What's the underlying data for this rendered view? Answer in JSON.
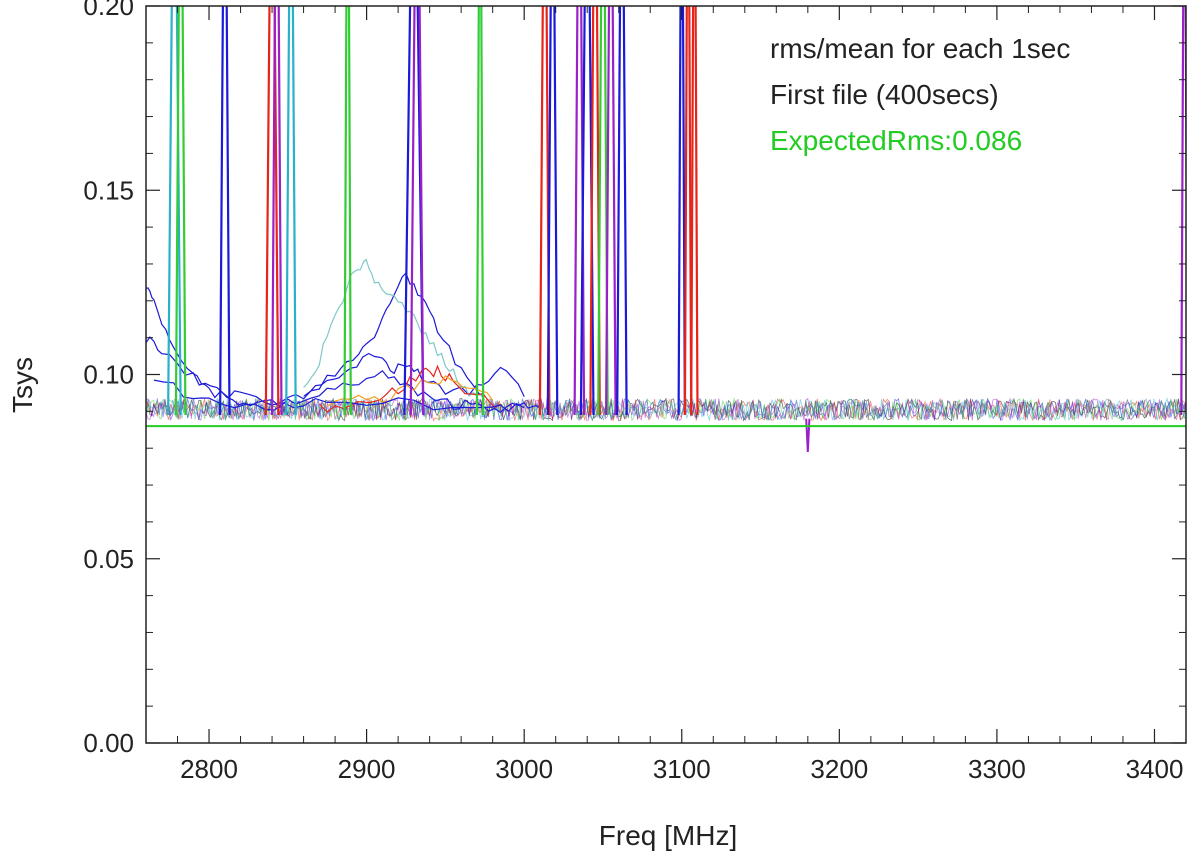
{
  "chart_data": {
    "type": "line",
    "xlabel": "Freq [MHz]",
    "ylabel": "Tsys",
    "xlim": [
      2760,
      3420
    ],
    "ylim": [
      0.0,
      0.2
    ],
    "x_ticks": [
      2800,
      2900,
      3000,
      3100,
      3200,
      3300,
      3400
    ],
    "x_tick_labels": [
      "2800",
      "2900",
      "3000",
      "3100",
      "3200",
      "3300",
      "3400"
    ],
    "y_ticks": [
      0.0,
      0.05,
      0.1,
      0.15,
      0.2
    ],
    "y_tick_labels": [
      "0.00",
      "0.05",
      "0.10",
      "0.15",
      "0.20"
    ],
    "grid": false,
    "legend_position": "top-right",
    "annotations": [
      {
        "text": "rms/mean for each 1sec",
        "color": "#222222"
      },
      {
        "text": "First file (400secs)",
        "color": "#222222"
      },
      {
        "text": "ExpectedRms:0.086",
        "color": "#22cc22"
      }
    ],
    "expected_rms": 0.086,
    "expected_rms_color": "#22cc22",
    "series_colors": [
      "#000000",
      "#e8241a",
      "#1a1ad8",
      "#2ab0c8",
      "#9a20c8",
      "#33cc33",
      "#f0a020",
      "#cc2288",
      "#7fc8c8",
      "#888888"
    ],
    "series": [
      {
        "color": "#1a1ad8",
        "x": [
          2760,
          2765,
          2775,
          2790,
          2800,
          2815,
          2830,
          2850,
          2870,
          2890,
          2910,
          2925,
          2940,
          2955,
          2970,
          2985,
          3000,
          3010
        ],
        "y": [
          0.124,
          0.12,
          0.11,
          0.1,
          0.096,
          0.093,
          0.092,
          0.092,
          0.094,
          0.098,
          0.1,
          0.097,
          0.093,
          0.092,
          0.092,
          0.091,
          0.091,
          0.091
        ]
      },
      {
        "color": "#1a1ad8",
        "x": [
          2760,
          2770,
          2790,
          2805,
          2820,
          2840,
          2860,
          2875,
          2890,
          2905,
          2915,
          2925,
          2935,
          2950,
          2970,
          2985,
          3000
        ],
        "y": [
          0.11,
          0.106,
          0.099,
          0.096,
          0.094,
          0.093,
          0.094,
          0.099,
          0.102,
          0.105,
          0.101,
          0.103,
          0.099,
          0.095,
          0.096,
          0.102,
          0.094
        ]
      },
      {
        "color": "#1a1ad8",
        "x": [
          2860,
          2880,
          2895,
          2905,
          2915,
          2925,
          2935,
          2945,
          2960,
          2975
        ],
        "y": [
          0.094,
          0.101,
          0.105,
          0.11,
          0.12,
          0.128,
          0.12,
          0.112,
          0.101,
          0.094
        ]
      },
      {
        "color": "#7fc8c8",
        "x": [
          2860,
          2870,
          2880,
          2890,
          2898,
          2905,
          2915,
          2925,
          2935,
          2945,
          2955,
          2965,
          2975
        ],
        "y": [
          0.095,
          0.104,
          0.116,
          0.126,
          0.131,
          0.126,
          0.121,
          0.118,
          0.112,
          0.106,
          0.1,
          0.095,
          0.093
        ]
      },
      {
        "color": "#e8241a",
        "x": [
          2870,
          2890,
          2905,
          2920,
          2935,
          2945,
          2955,
          2970,
          2985
        ],
        "y": [
          0.091,
          0.092,
          0.094,
          0.096,
          0.1,
          0.101,
          0.098,
          0.094,
          0.092
        ]
      },
      {
        "color": "#f0a020",
        "x": [
          2875,
          2895,
          2915,
          2935,
          2950,
          2965,
          2980
        ],
        "y": [
          0.092,
          0.093,
          0.094,
          0.098,
          0.099,
          0.096,
          0.093
        ]
      },
      {
        "color": "#1a1ad8",
        "x": [
          2765,
          2790,
          2810,
          2835,
          2860,
          2890,
          2930,
          2980,
          3000
        ],
        "y": [
          0.099,
          0.094,
          0.092,
          0.091,
          0.092,
          0.093,
          0.092,
          0.091,
          0.091
        ]
      }
    ],
    "noise_band": {
      "x_range": [
        2760,
        3420
      ],
      "y_range": [
        0.086,
        0.094
      ],
      "colors": [
        "#000000",
        "#e8241a",
        "#1a1ad8",
        "#33cc33",
        "#9a20c8",
        "#2ab0c8"
      ]
    },
    "rfi_spikes": [
      {
        "x": 2778,
        "width": 4,
        "color": "#2ab0c8"
      },
      {
        "x": 2782,
        "width": 3,
        "color": "#33cc33"
      },
      {
        "x": 2810,
        "width": 3,
        "color": "#1a1ad8"
      },
      {
        "x": 2840,
        "width": 4,
        "color": "#e8241a"
      },
      {
        "x": 2843,
        "width": 3,
        "color": "#9a20c8"
      },
      {
        "x": 2852,
        "width": 3,
        "color": "#2ab0c8"
      },
      {
        "x": 2888,
        "width": 2,
        "color": "#33cc33"
      },
      {
        "x": 2930,
        "width": 6,
        "color": "#1a1ad8"
      },
      {
        "x": 2932,
        "width": 4,
        "color": "#9a20c8"
      },
      {
        "x": 2972,
        "width": 2,
        "color": "#33cc33"
      },
      {
        "x": 3013,
        "width": 3,
        "color": "#e8241a"
      },
      {
        "x": 3018,
        "width": 3,
        "color": "#1a1ad8"
      },
      {
        "x": 3035,
        "width": 3,
        "color": "#9a20c8"
      },
      {
        "x": 3040,
        "width": 4,
        "color": "#1a1ad8"
      },
      {
        "x": 3045,
        "width": 3,
        "color": "#e8241a"
      },
      {
        "x": 3050,
        "width": 3,
        "color": "#33cc33"
      },
      {
        "x": 3055,
        "width": 3,
        "color": "#9a20c8"
      },
      {
        "x": 3062,
        "width": 3,
        "color": "#1a1ad8"
      },
      {
        "x": 3100,
        "width": 2,
        "color": "#1a1ad8"
      },
      {
        "x": 3104,
        "width": 2,
        "color": "#e8241a"
      },
      {
        "x": 3108,
        "width": 2,
        "color": "#e8241a"
      },
      {
        "x": 3419,
        "width": 2,
        "color": "#9a20c8"
      }
    ]
  }
}
